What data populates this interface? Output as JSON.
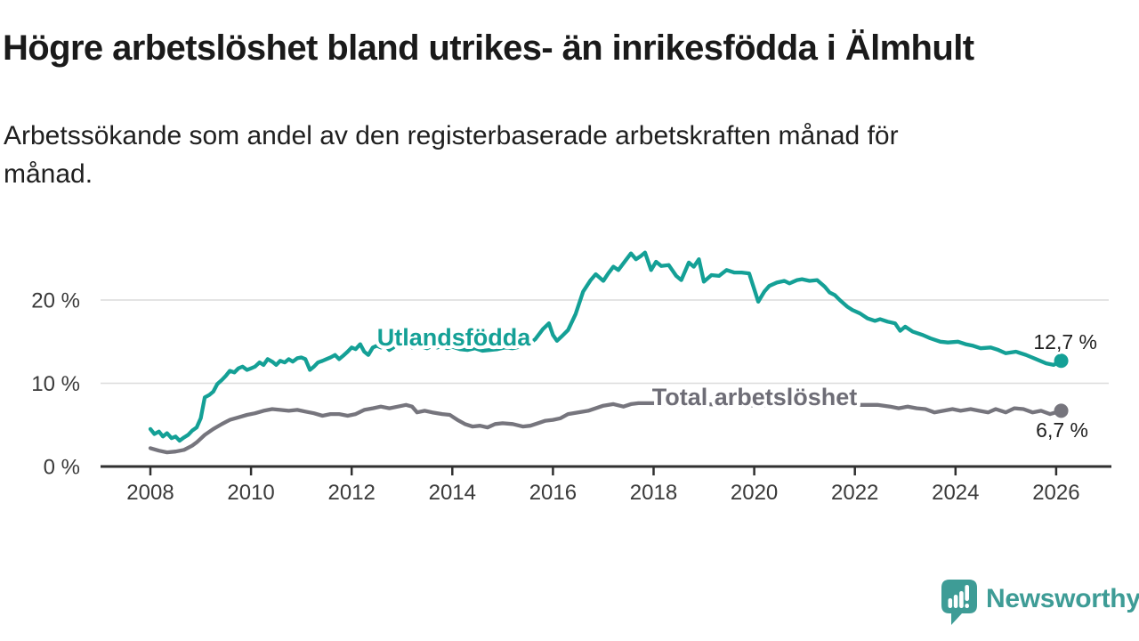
{
  "title": "Högre arbetslöshet bland utrikes- än inrikesfödda i Älmhult",
  "subtitle": {
    "line1": "Arbetssökande som andel av den registerbaserade arbetskraften månad för",
    "line2": "månad."
  },
  "colors": {
    "teal_series": "#14a096",
    "gray_series": "#76757d",
    "gray_label": "#6e6d76",
    "grid": "#dcdcdc",
    "axis": "#303030",
    "logo": "#3e9c96"
  },
  "chart_data": {
    "type": "line",
    "xlabel": "",
    "ylabel": "",
    "xlim": [
      2007,
      2027.2
    ],
    "ylim": [
      0,
      27
    ],
    "grid": "horizontal",
    "x_ticks": [
      2008,
      2010,
      2012,
      2014,
      2016,
      2018,
      2020,
      2022,
      2024,
      2026
    ],
    "y_ticks": [
      {
        "value": 0,
        "label": "0 %"
      },
      {
        "value": 10,
        "label": "10 %"
      },
      {
        "value": 20,
        "label": "20 %"
      }
    ],
    "series": [
      {
        "name": "Total arbetslöshet",
        "color": "#76757d",
        "end_label": "6,7 %",
        "end_value": 6.7,
        "points": [
          [
            2008.0,
            2.2
          ],
          [
            2008.17,
            1.9
          ],
          [
            2008.33,
            1.7
          ],
          [
            2008.5,
            1.8
          ],
          [
            2008.67,
            2.0
          ],
          [
            2008.83,
            2.5
          ],
          [
            2008.92,
            2.9
          ],
          [
            2009.08,
            3.8
          ],
          [
            2009.25,
            4.5
          ],
          [
            2009.42,
            5.1
          ],
          [
            2009.58,
            5.6
          ],
          [
            2009.75,
            5.9
          ],
          [
            2009.92,
            6.2
          ],
          [
            2010.08,
            6.4
          ],
          [
            2010.25,
            6.7
          ],
          [
            2010.42,
            6.9
          ],
          [
            2010.58,
            6.8
          ],
          [
            2010.75,
            6.7
          ],
          [
            2010.92,
            6.8
          ],
          [
            2011.08,
            6.6
          ],
          [
            2011.25,
            6.4
          ],
          [
            2011.42,
            6.1
          ],
          [
            2011.58,
            6.3
          ],
          [
            2011.75,
            6.3
          ],
          [
            2011.92,
            6.1
          ],
          [
            2012.08,
            6.3
          ],
          [
            2012.25,
            6.8
          ],
          [
            2012.42,
            7.0
          ],
          [
            2012.58,
            7.2
          ],
          [
            2012.75,
            7.0
          ],
          [
            2012.92,
            7.2
          ],
          [
            2013.08,
            7.4
          ],
          [
            2013.2,
            7.2
          ],
          [
            2013.3,
            6.5
          ],
          [
            2013.45,
            6.7
          ],
          [
            2013.6,
            6.5
          ],
          [
            2013.8,
            6.3
          ],
          [
            2013.95,
            6.2
          ],
          [
            2014.1,
            5.6
          ],
          [
            2014.25,
            5.1
          ],
          [
            2014.4,
            4.8
          ],
          [
            2014.55,
            4.9
          ],
          [
            2014.7,
            4.7
          ],
          [
            2014.85,
            5.1
          ],
          [
            2015.0,
            5.2
          ],
          [
            2015.2,
            5.1
          ],
          [
            2015.4,
            4.8
          ],
          [
            2015.55,
            4.9
          ],
          [
            2015.7,
            5.2
          ],
          [
            2015.85,
            5.5
          ],
          [
            2016.0,
            5.6
          ],
          [
            2016.15,
            5.8
          ],
          [
            2016.3,
            6.3
          ],
          [
            2016.5,
            6.5
          ],
          [
            2016.7,
            6.7
          ],
          [
            2016.85,
            7.0
          ],
          [
            2017.0,
            7.3
          ],
          [
            2017.2,
            7.5
          ],
          [
            2017.4,
            7.2
          ],
          [
            2017.55,
            7.5
          ],
          [
            2017.7,
            7.6
          ],
          [
            2018.0,
            7.6
          ],
          [
            2018.3,
            7.5
          ],
          [
            2018.6,
            7.4
          ],
          [
            2019.0,
            7.5
          ],
          [
            2019.4,
            7.4
          ],
          [
            2019.8,
            7.4
          ],
          [
            2020.1,
            7.3
          ],
          [
            2020.5,
            7.5
          ],
          [
            2020.9,
            7.4
          ],
          [
            2021.3,
            7.5
          ],
          [
            2021.7,
            7.4
          ],
          [
            2022.0,
            7.4
          ],
          [
            2022.3,
            7.4
          ],
          [
            2022.45,
            7.4
          ],
          [
            2022.7,
            7.2
          ],
          [
            2022.87,
            7.0
          ],
          [
            2023.05,
            7.2
          ],
          [
            2023.23,
            7.0
          ],
          [
            2023.4,
            6.9
          ],
          [
            2023.58,
            6.5
          ],
          [
            2023.76,
            6.7
          ],
          [
            2023.94,
            6.9
          ],
          [
            2024.1,
            6.7
          ],
          [
            2024.3,
            6.9
          ],
          [
            2024.47,
            6.7
          ],
          [
            2024.65,
            6.5
          ],
          [
            2024.8,
            6.9
          ],
          [
            2025.0,
            6.5
          ],
          [
            2025.17,
            7.0
          ],
          [
            2025.35,
            6.9
          ],
          [
            2025.53,
            6.5
          ],
          [
            2025.7,
            6.7
          ],
          [
            2025.88,
            6.3
          ],
          [
            2026.05,
            6.6
          ],
          [
            2026.1,
            6.7
          ]
        ]
      },
      {
        "name": "Utlandsfödda",
        "color": "#14a096",
        "end_label": "12,7 %",
        "end_value": 12.7,
        "points": [
          [
            2008.0,
            4.5
          ],
          [
            2008.08,
            3.9
          ],
          [
            2008.17,
            4.2
          ],
          [
            2008.25,
            3.6
          ],
          [
            2008.33,
            4.0
          ],
          [
            2008.42,
            3.4
          ],
          [
            2008.5,
            3.6
          ],
          [
            2008.58,
            3.1
          ],
          [
            2008.67,
            3.5
          ],
          [
            2008.75,
            3.8
          ],
          [
            2008.83,
            4.3
          ],
          [
            2008.92,
            4.7
          ],
          [
            2009.0,
            5.8
          ],
          [
            2009.08,
            8.3
          ],
          [
            2009.17,
            8.6
          ],
          [
            2009.25,
            9.0
          ],
          [
            2009.33,
            9.9
          ],
          [
            2009.42,
            10.4
          ],
          [
            2009.5,
            10.9
          ],
          [
            2009.58,
            11.5
          ],
          [
            2009.67,
            11.3
          ],
          [
            2009.75,
            11.8
          ],
          [
            2009.83,
            12.0
          ],
          [
            2009.92,
            11.6
          ],
          [
            2010.0,
            11.8
          ],
          [
            2010.08,
            12.0
          ],
          [
            2010.17,
            12.5
          ],
          [
            2010.25,
            12.2
          ],
          [
            2010.33,
            12.9
          ],
          [
            2010.42,
            12.6
          ],
          [
            2010.5,
            12.2
          ],
          [
            2010.58,
            12.7
          ],
          [
            2010.67,
            12.5
          ],
          [
            2010.75,
            12.9
          ],
          [
            2010.83,
            12.6
          ],
          [
            2010.92,
            13.0
          ],
          [
            2011.0,
            13.1
          ],
          [
            2011.08,
            12.9
          ],
          [
            2011.17,
            11.6
          ],
          [
            2011.25,
            12.0
          ],
          [
            2011.33,
            12.5
          ],
          [
            2011.42,
            12.7
          ],
          [
            2011.5,
            12.9
          ],
          [
            2011.58,
            13.1
          ],
          [
            2011.67,
            13.4
          ],
          [
            2011.75,
            12.9
          ],
          [
            2011.83,
            13.3
          ],
          [
            2011.92,
            13.8
          ],
          [
            2012.0,
            14.3
          ],
          [
            2012.08,
            14.1
          ],
          [
            2012.17,
            14.7
          ],
          [
            2012.25,
            13.8
          ],
          [
            2012.33,
            13.4
          ],
          [
            2012.42,
            14.3
          ],
          [
            2012.5,
            14.5
          ],
          [
            2012.58,
            14.3
          ],
          [
            2012.67,
            14.5
          ],
          [
            2012.75,
            14.0
          ],
          [
            2012.83,
            14.3
          ],
          [
            2012.92,
            14.9
          ],
          [
            2013.0,
            14.7
          ],
          [
            2013.1,
            15.0
          ],
          [
            2013.2,
            14.3
          ],
          [
            2013.3,
            14.6
          ],
          [
            2013.4,
            14.4
          ],
          [
            2013.5,
            14.2
          ],
          [
            2013.6,
            14.5
          ],
          [
            2013.7,
            14.3
          ],
          [
            2013.8,
            14.5
          ],
          [
            2013.9,
            14.2
          ],
          [
            2014.0,
            14.4
          ],
          [
            2014.15,
            14.1
          ],
          [
            2014.3,
            14.0
          ],
          [
            2014.45,
            14.2
          ],
          [
            2014.6,
            13.9
          ],
          [
            2014.75,
            14.0
          ],
          [
            2014.9,
            14.1
          ],
          [
            2015.05,
            14.3
          ],
          [
            2015.2,
            14.2
          ],
          [
            2015.35,
            14.4
          ],
          [
            2015.5,
            14.6
          ],
          [
            2015.65,
            15.3
          ],
          [
            2015.8,
            16.5
          ],
          [
            2015.92,
            17.2
          ],
          [
            2016.0,
            15.8
          ],
          [
            2016.08,
            15.1
          ],
          [
            2016.17,
            15.6
          ],
          [
            2016.3,
            16.4
          ],
          [
            2016.45,
            18.3
          ],
          [
            2016.6,
            21.0
          ],
          [
            2016.75,
            22.4
          ],
          [
            2016.85,
            23.1
          ],
          [
            2017.0,
            22.3
          ],
          [
            2017.1,
            23.2
          ],
          [
            2017.2,
            24.0
          ],
          [
            2017.3,
            23.6
          ],
          [
            2017.45,
            24.8
          ],
          [
            2017.55,
            25.6
          ],
          [
            2017.65,
            24.9
          ],
          [
            2017.75,
            25.3
          ],
          [
            2017.83,
            25.7
          ],
          [
            2017.95,
            23.6
          ],
          [
            2018.05,
            24.6
          ],
          [
            2018.15,
            24.1
          ],
          [
            2018.3,
            24.2
          ],
          [
            2018.45,
            22.9
          ],
          [
            2018.55,
            22.4
          ],
          [
            2018.7,
            24.5
          ],
          [
            2018.8,
            24.0
          ],
          [
            2018.9,
            24.9
          ],
          [
            2019.0,
            22.2
          ],
          [
            2019.15,
            23.0
          ],
          [
            2019.3,
            22.9
          ],
          [
            2019.45,
            23.6
          ],
          [
            2019.6,
            23.3
          ],
          [
            2019.75,
            23.3
          ],
          [
            2019.9,
            23.2
          ],
          [
            2020.0,
            21.3
          ],
          [
            2020.08,
            19.8
          ],
          [
            2020.2,
            21.0
          ],
          [
            2020.3,
            21.7
          ],
          [
            2020.45,
            22.1
          ],
          [
            2020.6,
            22.3
          ],
          [
            2020.7,
            22.0
          ],
          [
            2020.85,
            22.4
          ],
          [
            2020.95,
            22.5
          ],
          [
            2021.1,
            22.3
          ],
          [
            2021.25,
            22.4
          ],
          [
            2021.4,
            21.6
          ],
          [
            2021.5,
            20.9
          ],
          [
            2021.6,
            20.6
          ],
          [
            2021.7,
            20.0
          ],
          [
            2021.85,
            19.2
          ],
          [
            2021.95,
            18.8
          ],
          [
            2022.1,
            18.4
          ],
          [
            2022.25,
            17.8
          ],
          [
            2022.4,
            17.5
          ],
          [
            2022.5,
            17.7
          ],
          [
            2022.65,
            17.4
          ],
          [
            2022.8,
            17.2
          ],
          [
            2022.9,
            16.3
          ],
          [
            2023.0,
            16.8
          ],
          [
            2023.15,
            16.2
          ],
          [
            2023.35,
            15.8
          ],
          [
            2023.5,
            15.4
          ],
          [
            2023.7,
            15.0
          ],
          [
            2023.85,
            14.9
          ],
          [
            2024.05,
            15.0
          ],
          [
            2024.2,
            14.7
          ],
          [
            2024.35,
            14.5
          ],
          [
            2024.5,
            14.2
          ],
          [
            2024.7,
            14.3
          ],
          [
            2024.85,
            14.0
          ],
          [
            2025.0,
            13.6
          ],
          [
            2025.2,
            13.8
          ],
          [
            2025.4,
            13.4
          ],
          [
            2025.6,
            12.9
          ],
          [
            2025.8,
            12.4
          ],
          [
            2025.95,
            12.2
          ],
          [
            2026.1,
            12.7
          ]
        ]
      }
    ],
    "annotations": {
      "teal_series_label": "Utlandsfödda",
      "gray_series_label": "Total arbetslöshet",
      "teal_end_label": "12,7 %",
      "gray_end_label": "6,7 %"
    },
    "legend_position": "inline-labels"
  },
  "branding": {
    "logo_text": "Newsworthy",
    "logo_icon": "speech-bubble-bar-chart-icon"
  }
}
